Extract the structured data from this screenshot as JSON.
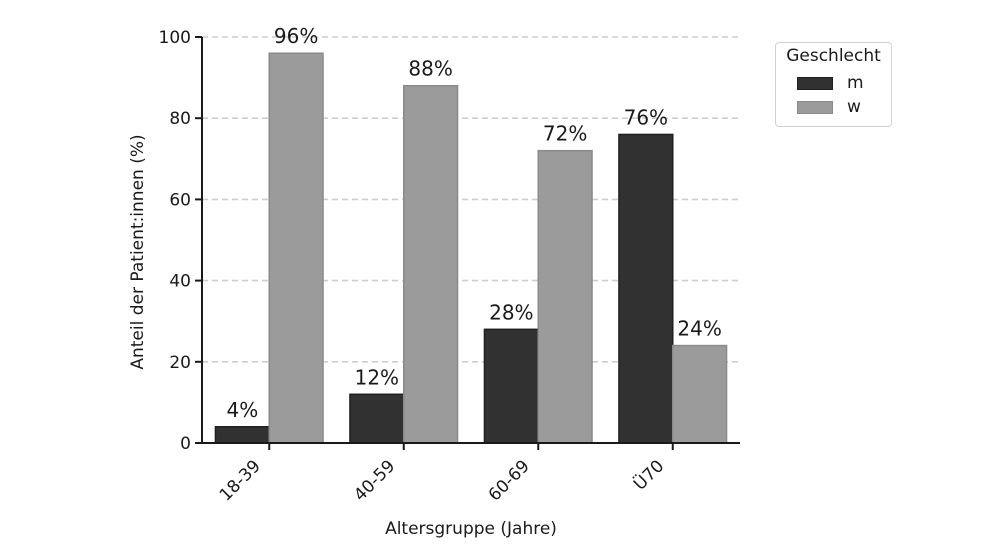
{
  "chart_data": {
    "type": "bar",
    "title": "",
    "xlabel": "Altersgruppe (Jahre)",
    "ylabel": "Anteil der Patient:innen (%)",
    "categories": [
      "18-39",
      "40-59",
      "60-69",
      "Ü70"
    ],
    "series": [
      {
        "name": "m",
        "values": [
          4,
          12,
          28,
          76
        ],
        "fill": "#313131",
        "edge": "#1f1f1f"
      },
      {
        "name": "w",
        "values": [
          96,
          88,
          72,
          24
        ],
        "fill": "#9b9b9b",
        "edge": "#8a8a8a"
      }
    ],
    "bar_labels": [
      [
        "4%",
        "12%",
        "28%",
        "76%"
      ],
      [
        "96%",
        "88%",
        "72%",
        "24%"
      ]
    ],
    "ylim": [
      0,
      100
    ],
    "yticks": [
      0,
      20,
      40,
      60,
      80,
      100
    ],
    "grid": {
      "axis": "y",
      "style": "dashed"
    },
    "legend": {
      "title": "Geschlecht",
      "entries": [
        "m",
        "w"
      ],
      "position": "upper right outside plot"
    },
    "colors": {
      "grid": "#cdcdcd",
      "axis": "#1a1a1a",
      "text": "#1a1a1a",
      "background": "#ffffff"
    }
  }
}
